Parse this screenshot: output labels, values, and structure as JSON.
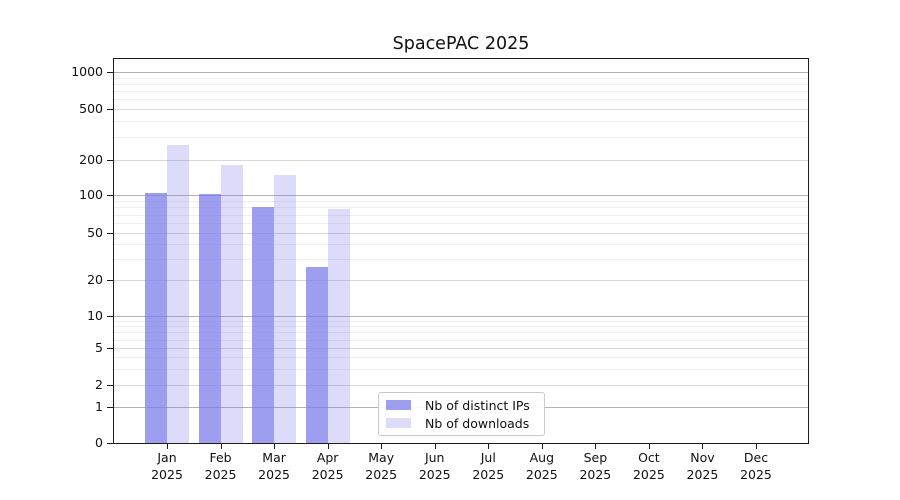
{
  "chart_data": {
    "type": "bar",
    "title": "SpacePAC 2025",
    "categories": [
      "Jan 2025",
      "Feb 2025",
      "Mar 2025",
      "Apr 2025",
      "May 2025",
      "Jun 2025",
      "Jul 2025",
      "Aug 2025",
      "Sep 2025",
      "Oct 2025",
      "Nov 2025",
      "Dec 2025"
    ],
    "series": [
      {
        "name": "Nb of distinct IPs",
        "color": "#7878ec",
        "fill_opacity": 0.72,
        "values": [
          105,
          102,
          81,
          26,
          0,
          0,
          0,
          0,
          0,
          0,
          0,
          0
        ]
      },
      {
        "name": "Nb of downloads",
        "color": "#7878ec",
        "fill_opacity": 0.26,
        "values": [
          260,
          180,
          150,
          78,
          0,
          0,
          0,
          0,
          0,
          0,
          0,
          0
        ]
      }
    ],
    "xlabel": "",
    "ylabel": "",
    "y_scale": "symlog",
    "y_ticks": [
      0,
      1,
      2,
      5,
      10,
      20,
      50,
      100,
      200,
      500,
      1000
    ],
    "ylim": [
      0,
      1000
    ],
    "grid": true,
    "legend_position": "lower-center-left",
    "legend_entries": [
      "Nb of distinct IPs",
      "Nb of downloads"
    ]
  }
}
